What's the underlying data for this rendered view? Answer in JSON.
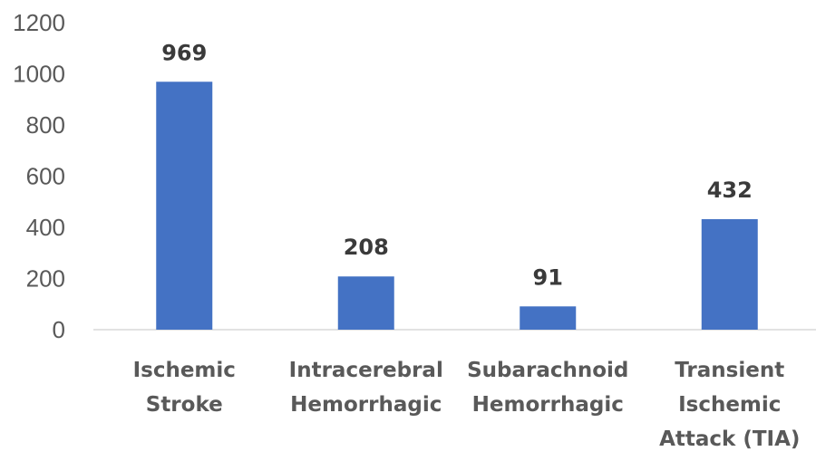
{
  "chart_data": {
    "type": "bar",
    "categories": [
      [
        "Ischemic",
        "Stroke"
      ],
      [
        "Intracerebral",
        "Hemorrhagic"
      ],
      [
        "Subarachnoid",
        "Hemorrhagic"
      ],
      [
        "Transient",
        "Ischemic",
        "Attack (TIA)"
      ]
    ],
    "values": [
      969,
      208,
      91,
      432
    ],
    "data_labels": [
      "969",
      "208",
      "91",
      "432"
    ],
    "y_ticks": [
      0,
      200,
      400,
      600,
      800,
      1000,
      1200
    ],
    "y_tick_labels": [
      "0",
      "200",
      "400",
      "600",
      "800",
      "1000",
      "1200"
    ],
    "ylim": [
      0,
      1200
    ],
    "title": "",
    "xlabel": "",
    "ylabel": "",
    "grid": false,
    "legend": "none",
    "colors": {
      "bar": "#4472C4",
      "axis": "#d9d9d9"
    }
  }
}
